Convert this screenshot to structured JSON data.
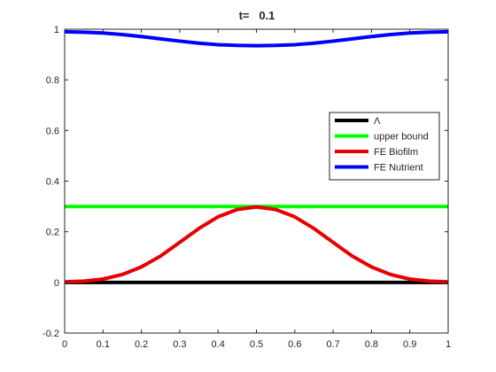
{
  "chart_data": {
    "type": "line",
    "title": "t=   0.1",
    "xlabel": "",
    "ylabel": "",
    "xlim": [
      0,
      1
    ],
    "ylim": [
      -0.2,
      1
    ],
    "xticks": [
      "0",
      "0.1",
      "0.2",
      "0.3",
      "0.4",
      "0.5",
      "0.6",
      "0.7",
      "0.8",
      "0.9",
      "1"
    ],
    "yticks": [
      "-0.2",
      "0",
      "0.2",
      "0.4",
      "0.6",
      "0.8",
      "1"
    ],
    "grid": false,
    "legend_position": "right",
    "series": [
      {
        "name": "Λ",
        "color": "#000000",
        "x": [
          0,
          0.1,
          0.2,
          0.3,
          0.4,
          0.5,
          0.6,
          0.7,
          0.8,
          0.9,
          1
        ],
        "y": [
          0,
          0,
          0,
          0,
          0,
          0,
          0,
          0,
          0,
          0,
          0
        ]
      },
      {
        "name": "upper bound",
        "color": "#00ff00",
        "x": [
          0,
          0.1,
          0.2,
          0.3,
          0.4,
          0.5,
          0.6,
          0.7,
          0.8,
          0.9,
          1
        ],
        "y": [
          0.3,
          0.3,
          0.3,
          0.3,
          0.3,
          0.3,
          0.3,
          0.3,
          0.3,
          0.3,
          0.3
        ]
      },
      {
        "name": "FE Biofilm",
        "color": "#e60000",
        "x": [
          0,
          0.05,
          0.1,
          0.15,
          0.2,
          0.25,
          0.3,
          0.35,
          0.4,
          0.45,
          0.5,
          0.55,
          0.6,
          0.65,
          0.7,
          0.75,
          0.8,
          0.85,
          0.9,
          0.95,
          1
        ],
        "y": [
          0.002,
          0.005,
          0.013,
          0.031,
          0.061,
          0.104,
          0.158,
          0.213,
          0.259,
          0.288,
          0.298,
          0.288,
          0.259,
          0.213,
          0.158,
          0.104,
          0.061,
          0.031,
          0.013,
          0.005,
          0.002
        ]
      },
      {
        "name": "FE Nutrient",
        "color": "#0000ff",
        "x": [
          0,
          0.05,
          0.1,
          0.15,
          0.2,
          0.25,
          0.3,
          0.35,
          0.4,
          0.45,
          0.5,
          0.55,
          0.6,
          0.65,
          0.7,
          0.75,
          0.8,
          0.85,
          0.9,
          0.95,
          1
        ],
        "y": [
          0.99,
          0.988,
          0.985,
          0.979,
          0.971,
          0.962,
          0.953,
          0.945,
          0.939,
          0.936,
          0.935,
          0.936,
          0.939,
          0.945,
          0.953,
          0.962,
          0.971,
          0.979,
          0.985,
          0.988,
          0.99
        ]
      }
    ]
  }
}
